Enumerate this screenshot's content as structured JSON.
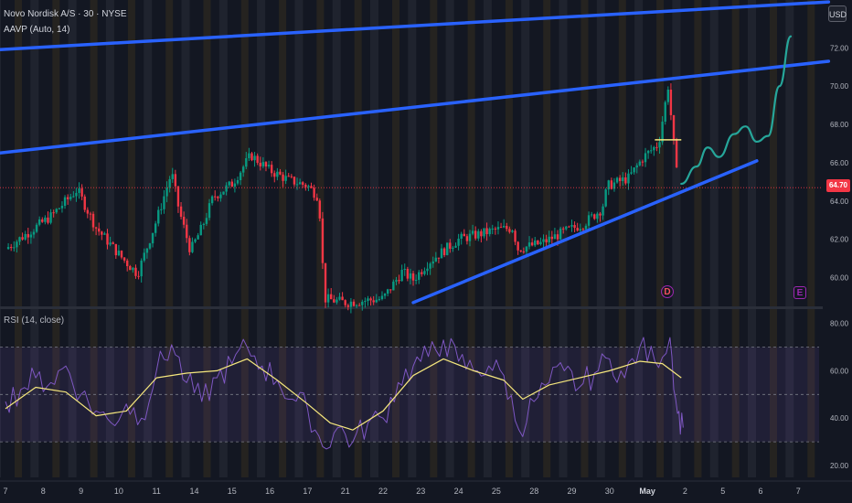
{
  "header": {
    "symbol_line": "Novo Nordisk A/S · 30 · NYSE",
    "indicator_line": "AAVP (Auto, 14)",
    "currency": "USD"
  },
  "last_price_label": "64.70",
  "rsi_label": "RSI (14, close)",
  "events": {
    "dividend": "D",
    "earnings": "E"
  },
  "colors": {
    "background": "#131722",
    "up_candle": "#089981",
    "down_candle": "#f23645",
    "trendline": "#2962ff",
    "projection": "#26a69a",
    "rsi_line": "#7e57c2",
    "rsi_ma": "#f5e77d",
    "price_line": "#f23645"
  },
  "chart_data": [
    {
      "type": "candlestick",
      "title": "Novo Nordisk A/S · 30 · NYSE",
      "ylim": [
        58.5,
        74.5
      ],
      "y_ticks": [
        "60.00",
        "62.00",
        "64.00",
        "66.00",
        "68.00",
        "70.00",
        "72.00"
      ],
      "x_ticks": [
        "7",
        "8",
        "9",
        "10",
        "11",
        "14",
        "15",
        "16",
        "17",
        "21",
        "22",
        "23",
        "24",
        "25",
        "28",
        "29",
        "30",
        "May",
        "2",
        "5",
        "6",
        "7"
      ],
      "last_price": 64.7,
      "close_path": [
        [
          0,
          61.5
        ],
        [
          1.2,
          63.2
        ],
        [
          1.9,
          64.6
        ],
        [
          2.4,
          62.6
        ],
        [
          3.1,
          61.0
        ],
        [
          3.5,
          60.2
        ],
        [
          4.0,
          63.0
        ],
        [
          4.4,
          65.5
        ],
        [
          4.6,
          63.5
        ],
        [
          4.9,
          61.4
        ],
        [
          5.2,
          62.6
        ],
        [
          5.5,
          64.2
        ],
        [
          6.0,
          64.9
        ],
        [
          6.5,
          66.4
        ],
        [
          7.0,
          65.6
        ],
        [
          7.5,
          65.1
        ],
        [
          8.0,
          64.8
        ],
        [
          8.3,
          64.2
        ],
        [
          8.45,
          58.9
        ],
        [
          9.0,
          58.7
        ],
        [
          10.0,
          58.9
        ],
        [
          10.5,
          60.3
        ],
        [
          10.8,
          59.9
        ],
        [
          11.2,
          60.8
        ],
        [
          12.0,
          62.0
        ],
        [
          13.0,
          62.5
        ],
        [
          13.45,
          62.6
        ],
        [
          13.55,
          61.5
        ],
        [
          14.2,
          61.8
        ],
        [
          14.8,
          62.4
        ],
        [
          15.3,
          62.8
        ],
        [
          15.8,
          63.6
        ],
        [
          15.95,
          64.8
        ],
        [
          16.5,
          65.2
        ],
        [
          16.9,
          66.3
        ],
        [
          17.3,
          67.0
        ],
        [
          17.55,
          70.0
        ],
        [
          17.8,
          65.0
        ]
      ],
      "projection_path": [
        [
          17.9,
          64.9
        ],
        [
          18.3,
          65.8
        ],
        [
          18.6,
          66.8
        ],
        [
          18.9,
          66.3
        ],
        [
          19.3,
          67.5
        ],
        [
          19.6,
          67.9
        ],
        [
          19.9,
          67.1
        ],
        [
          20.2,
          67.4
        ],
        [
          20.5,
          70.0
        ],
        [
          20.8,
          72.6
        ]
      ],
      "trendlines": [
        {
          "name": "upper-channel-top",
          "from": [
            -0.2,
            71.9
          ],
          "to": [
            21.8,
            74.4
          ]
        },
        {
          "name": "upper-channel-mid",
          "from": [
            -0.2,
            66.5
          ],
          "to": [
            21.8,
            71.3
          ]
        },
        {
          "name": "rising-support",
          "from": [
            10.8,
            58.7
          ],
          "to": [
            19.9,
            66.1
          ]
        }
      ],
      "price_level_marker": [
        17.2,
        17.9,
        67.2
      ]
    },
    {
      "type": "line",
      "title": "RSI (14, close)",
      "ylim": [
        15,
        86
      ],
      "y_ticks": [
        "20.00",
        "40.00",
        "60.00",
        "80.00"
      ],
      "band": [
        30,
        70
      ],
      "midline": 50,
      "series": [
        {
          "name": "RSI",
          "values": [
            [
              0,
              47
            ],
            [
              0.4,
              52
            ],
            [
              0.8,
              57
            ],
            [
              1.2,
              55
            ],
            [
              1.6,
              62
            ],
            [
              2.0,
              50
            ],
            [
              2.4,
              43
            ],
            [
              2.8,
              38
            ],
            [
              3.2,
              46
            ],
            [
              3.6,
              40
            ],
            [
              4.0,
              60
            ],
            [
              4.4,
              71
            ],
            [
              4.8,
              55
            ],
            [
              5.2,
              47
            ],
            [
              5.6,
              57
            ],
            [
              6.0,
              63
            ],
            [
              6.4,
              70
            ],
            [
              6.8,
              62
            ],
            [
              7.2,
              56
            ],
            [
              7.6,
              48
            ],
            [
              8.0,
              44
            ],
            [
              8.4,
              28
            ],
            [
              8.8,
              36
            ],
            [
              9.2,
              30
            ],
            [
              9.6,
              38
            ],
            [
              10.0,
              40
            ],
            [
              10.4,
              55
            ],
            [
              10.8,
              62
            ],
            [
              11.2,
              66
            ],
            [
              11.6,
              73
            ],
            [
              12.0,
              64
            ],
            [
              12.4,
              60
            ],
            [
              12.8,
              62
            ],
            [
              13.2,
              58
            ],
            [
              13.6,
              35
            ],
            [
              14.0,
              47
            ],
            [
              14.4,
              55
            ],
            [
              14.8,
              60
            ],
            [
              15.2,
              53
            ],
            [
              15.6,
              59
            ],
            [
              16.0,
              65
            ],
            [
              16.4,
              57
            ],
            [
              16.8,
              70
            ],
            [
              17.2,
              64
            ],
            [
              17.6,
              74
            ],
            [
              17.8,
              42
            ],
            [
              17.95,
              36
            ]
          ]
        },
        {
          "name": "RSI-based MA",
          "values": [
            [
              0,
              44
            ],
            [
              0.8,
              53
            ],
            [
              1.6,
              51
            ],
            [
              2.4,
              41
            ],
            [
              3.2,
              43
            ],
            [
              4.0,
              57
            ],
            [
              4.8,
              59
            ],
            [
              5.6,
              60
            ],
            [
              6.4,
              65
            ],
            [
              7.2,
              56
            ],
            [
              8.0,
              46
            ],
            [
              8.6,
              38
            ],
            [
              9.2,
              35
            ],
            [
              10.0,
              43
            ],
            [
              10.8,
              58
            ],
            [
              11.6,
              65
            ],
            [
              12.4,
              60
            ],
            [
              13.2,
              56
            ],
            [
              13.7,
              48
            ],
            [
              14.4,
              54
            ],
            [
              15.2,
              57
            ],
            [
              16.0,
              60
            ],
            [
              16.8,
              64
            ],
            [
              17.4,
              63
            ],
            [
              17.9,
              57
            ]
          ]
        }
      ]
    }
  ]
}
